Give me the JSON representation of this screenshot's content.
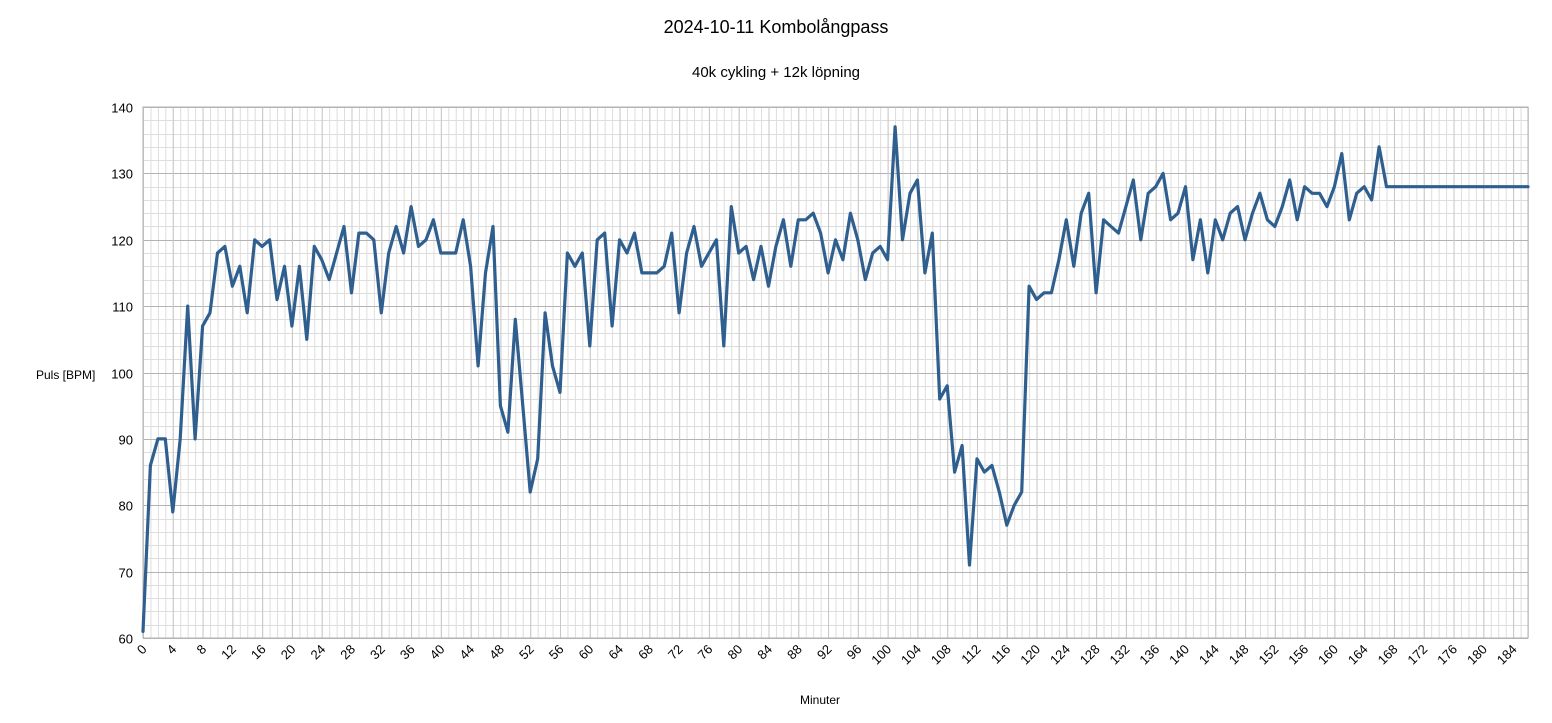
{
  "chart_data": {
    "type": "line",
    "title": "2024-10-11 Kombolångpass",
    "subtitle": "40k cykling + 12k löpning",
    "xlabel": "Minuter",
    "ylabel": "Puls [BPM]",
    "xlim": [
      0,
      186
    ],
    "ylim": [
      60,
      140
    ],
    "yticks": [
      60,
      70,
      80,
      90,
      100,
      110,
      120,
      130,
      140
    ],
    "xtick_step": 4,
    "grid": true,
    "line_color": "#2f5f8f",
    "x": [
      0,
      1,
      2,
      3,
      4,
      5,
      6,
      7,
      8,
      9,
      10,
      11,
      12,
      13,
      14,
      15,
      16,
      17,
      18,
      19,
      20,
      21,
      22,
      23,
      24,
      25,
      26,
      27,
      28,
      29,
      30,
      31,
      32,
      33,
      34,
      35,
      36,
      37,
      38,
      39,
      40,
      41,
      42,
      43,
      44,
      45,
      46,
      47,
      48,
      49,
      50,
      51,
      52,
      53,
      54,
      55,
      56,
      57,
      58,
      59,
      60,
      61,
      62,
      63,
      64,
      65,
      66,
      67,
      68,
      69,
      70,
      71,
      72,
      73,
      74,
      75,
      76,
      77,
      78,
      79,
      80,
      81,
      82,
      83,
      84,
      85,
      86,
      87,
      88,
      89,
      90,
      91,
      92,
      93,
      94,
      95,
      96,
      97,
      98,
      99,
      100,
      101,
      102,
      103,
      104,
      105,
      106,
      107,
      108,
      109,
      110,
      111,
      112,
      113,
      114,
      115,
      116,
      117,
      118,
      119,
      120,
      121,
      122,
      123,
      124,
      125,
      126,
      127,
      128,
      129,
      130,
      131,
      132,
      133,
      134,
      135,
      136,
      137,
      138,
      139,
      140,
      141,
      142,
      143,
      144,
      145,
      146,
      147,
      148,
      149,
      150,
      151,
      152,
      153,
      154,
      155,
      156,
      157,
      158,
      159,
      160,
      161,
      162,
      163,
      164,
      165,
      166,
      167,
      186
    ],
    "y": [
      61,
      86,
      90,
      90,
      79,
      90,
      110,
      90,
      107,
      109,
      118,
      119,
      113,
      116,
      109,
      120,
      119,
      120,
      111,
      116,
      107,
      116,
      105,
      119,
      117,
      114,
      118,
      122,
      112,
      121,
      121,
      120,
      109,
      118,
      122,
      118,
      125,
      119,
      120,
      123,
      118,
      118,
      118,
      123,
      116,
      101,
      115,
      122,
      95,
      91,
      108,
      95,
      82,
      87,
      109,
      101,
      97,
      118,
      116,
      118,
      104,
      120,
      121,
      107,
      120,
      118,
      121,
      115,
      115,
      115,
      116,
      121,
      109,
      118,
      122,
      116,
      118,
      120,
      104,
      125,
      118,
      119,
      114,
      119,
      113,
      119,
      123,
      116,
      123,
      123,
      124,
      121,
      115,
      120,
      117,
      124,
      120,
      114,
      118,
      119,
      117,
      137,
      120,
      127,
      129,
      115,
      121,
      96,
      98,
      85,
      89,
      71,
      87,
      85,
      86,
      82,
      77,
      80,
      82,
      113,
      111,
      112,
      112,
      117,
      123,
      116,
      124,
      127,
      112,
      123,
      122,
      121,
      125,
      129,
      120,
      127,
      128,
      130,
      123,
      124,
      128,
      117,
      123,
      115,
      123,
      120,
      124,
      125,
      120,
      124,
      127,
      123,
      122,
      125,
      129,
      123,
      128,
      127,
      127,
      125,
      128,
      133,
      123,
      127,
      128,
      126,
      134,
      128,
      128
    ]
  }
}
